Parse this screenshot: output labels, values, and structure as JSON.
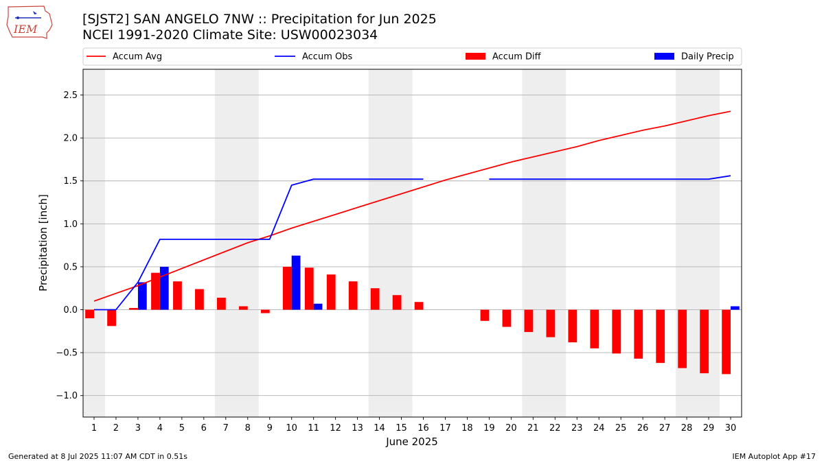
{
  "header": {
    "title": "[SJST2] SAN ANGELO 7NW :: Precipitation for Jun 2025",
    "subtitle": "NCEI 1991-2020 Climate Site: USW00023034",
    "logo_text": "IEM"
  },
  "footer": {
    "generated": "Generated at 8 Jul 2025 11:07 AM CDT in 0.51s",
    "app": "IEM Autoplot App #17"
  },
  "colors": {
    "accum_avg": "#ff0000",
    "accum_obs": "#0000ff",
    "accum_diff": "#ff0000",
    "daily_precip": "#0000ff",
    "weekend_shade": "#eeeeee",
    "grid": "#b0b0b0"
  },
  "chart_data": {
    "type": "bar",
    "xlabel": "June 2025",
    "ylabel": "Precipitation [inch]",
    "xlim": [
      0.5,
      30.5
    ],
    "ylim": [
      -1.25,
      2.8
    ],
    "yticks": [
      -1.0,
      -0.5,
      0.0,
      0.5,
      1.0,
      1.5,
      2.0,
      2.5
    ],
    "ytick_labels": [
      "−1.0",
      "−0.5",
      "0.0",
      "0.5",
      "1.0",
      "1.5",
      "2.0",
      "2.5"
    ],
    "grid": "horizontal",
    "legend_position": "top",
    "x": [
      1,
      2,
      3,
      4,
      5,
      6,
      7,
      8,
      9,
      10,
      11,
      12,
      13,
      14,
      15,
      16,
      17,
      18,
      19,
      20,
      21,
      22,
      23,
      24,
      25,
      26,
      27,
      28,
      29,
      30
    ],
    "weekend_spans": [
      [
        0.5,
        1.5
      ],
      [
        6.5,
        8.5
      ],
      [
        13.5,
        15.5
      ],
      [
        20.5,
        22.5
      ],
      [
        27.5,
        29.5
      ]
    ],
    "series": [
      {
        "name": "Accum Avg",
        "kind": "line",
        "values": [
          0.1,
          0.19,
          0.28,
          0.38,
          0.48,
          0.58,
          0.68,
          0.78,
          0.86,
          0.95,
          1.03,
          1.11,
          1.19,
          1.27,
          1.35,
          1.43,
          1.51,
          1.58,
          1.65,
          1.72,
          1.78,
          1.84,
          1.9,
          1.97,
          2.03,
          2.09,
          2.14,
          2.2,
          2.26,
          2.31
        ]
      },
      {
        "name": "Accum Obs",
        "kind": "line",
        "values": [
          0.0,
          0.0,
          0.32,
          0.82,
          0.82,
          0.82,
          0.82,
          0.82,
          0.82,
          1.45,
          1.52,
          1.52,
          1.52,
          1.52,
          1.52,
          1.52,
          null,
          null,
          1.52,
          1.52,
          1.52,
          1.52,
          1.52,
          1.52,
          1.52,
          1.52,
          1.52,
          1.52,
          1.52,
          1.56
        ]
      },
      {
        "name": "Accum Diff",
        "kind": "bar",
        "values": [
          -0.1,
          -0.19,
          0.02,
          0.43,
          0.33,
          0.24,
          0.14,
          0.04,
          -0.04,
          0.5,
          0.49,
          0.41,
          0.33,
          0.25,
          0.17,
          0.09,
          null,
          null,
          -0.13,
          -0.2,
          -0.26,
          -0.32,
          -0.38,
          -0.45,
          -0.51,
          -0.57,
          -0.62,
          -0.68,
          -0.74,
          -0.75
        ]
      },
      {
        "name": "Daily Precip",
        "kind": "bar",
        "values": [
          0,
          0,
          0.32,
          0.5,
          0,
          0,
          0,
          0,
          0,
          0.63,
          0.07,
          0,
          0,
          0,
          0,
          0,
          0,
          0,
          0,
          0,
          0,
          0,
          0,
          0,
          0,
          0,
          0,
          0,
          0,
          0.04
        ]
      }
    ]
  }
}
